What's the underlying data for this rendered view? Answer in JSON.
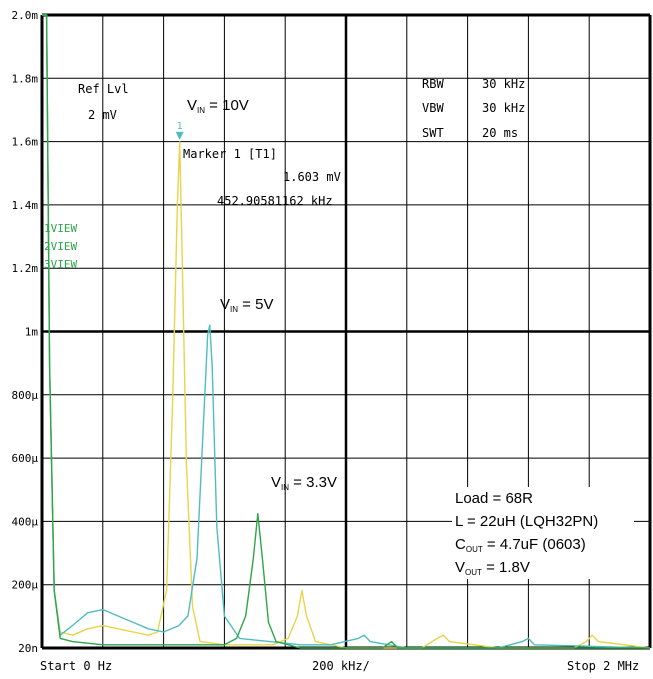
{
  "chart_data": {
    "type": "line",
    "title": "",
    "xlabel": "",
    "ylabel": "",
    "xlim": [
      0,
      2000
    ],
    "ylim": [
      2e-05,
      0.002
    ],
    "x_unit": "kHz",
    "y_unit": "V",
    "grid": true,
    "y_ticks": [
      {
        "value": 0.002,
        "label": "2.0m"
      },
      {
        "value": 0.0018,
        "label": "1.8m"
      },
      {
        "value": 0.0016,
        "label": "1.6m"
      },
      {
        "value": 0.0014,
        "label": "1.4m"
      },
      {
        "value": 0.0012,
        "label": "1.2m"
      },
      {
        "value": 0.001,
        "label": "1m"
      },
      {
        "value": 0.0008,
        "label": "800µ"
      },
      {
        "value": 0.0006,
        "label": "600µ"
      },
      {
        "value": 0.0004,
        "label": "400µ"
      },
      {
        "value": 0.0002,
        "label": "200µ"
      },
      {
        "value": 2e-05,
        "label": "20n"
      }
    ],
    "x_labels": {
      "start": "Start 0 Hz",
      "div": "200 kHz/",
      "stop": "Stop 2 MHz"
    },
    "series": [
      {
        "name": "V_IN = 10V",
        "color": "#e8d44a",
        "points": [
          [
            0,
            0.002
          ],
          [
            15,
            0.002
          ],
          [
            25,
            0.0009
          ],
          [
            40,
            0.0002
          ],
          [
            60,
            7e-05
          ],
          [
            100,
            6e-05
          ],
          [
            150,
            8e-05
          ],
          [
            200,
            9e-05
          ],
          [
            250,
            8e-05
          ],
          [
            300,
            7e-05
          ],
          [
            350,
            6e-05
          ],
          [
            380,
            7e-05
          ],
          [
            410,
            0.0002
          ],
          [
            430,
            0.0008
          ],
          [
            445,
            0.0014
          ],
          [
            452.9,
            0.001603
          ],
          [
            460,
            0.0013
          ],
          [
            475,
            0.0006
          ],
          [
            495,
            0.00015
          ],
          [
            520,
            4e-05
          ],
          [
            600,
            3e-05
          ],
          [
            680,
            3e-05
          ],
          [
            760,
            3e-05
          ],
          [
            810,
            5e-05
          ],
          [
            840,
            0.00012
          ],
          [
            855,
            0.0002
          ],
          [
            870,
            0.00012
          ],
          [
            900,
            4e-05
          ],
          [
            1000,
            2e-05
          ],
          [
            1250,
            2e-05
          ],
          [
            1300,
            5e-05
          ],
          [
            1320,
            6e-05
          ],
          [
            1340,
            4e-05
          ],
          [
            1500,
            2e-05
          ],
          [
            1750,
            2e-05
          ],
          [
            1790,
            4e-05
          ],
          [
            1810,
            6e-05
          ],
          [
            1830,
            4e-05
          ],
          [
            2000,
            2e-05
          ]
        ]
      },
      {
        "name": "V_IN = 5V",
        "color": "#4fbcc0",
        "points": [
          [
            0,
            0.002
          ],
          [
            15,
            0.002
          ],
          [
            25,
            0.0009
          ],
          [
            40,
            0.0002
          ],
          [
            60,
            6e-05
          ],
          [
            100,
            9e-05
          ],
          [
            150,
            0.00013
          ],
          [
            200,
            0.00014
          ],
          [
            250,
            0.00012
          ],
          [
            300,
            0.0001
          ],
          [
            350,
            8e-05
          ],
          [
            400,
            7e-05
          ],
          [
            450,
            9e-05
          ],
          [
            480,
            0.00012
          ],
          [
            510,
            0.0003
          ],
          [
            530,
            0.0007
          ],
          [
            545,
            0.001
          ],
          [
            552,
            0.00103
          ],
          [
            560,
            0.0009
          ],
          [
            575,
            0.0004
          ],
          [
            600,
            0.00012
          ],
          [
            650,
            5e-05
          ],
          [
            750,
            4e-05
          ],
          [
            850,
            3e-05
          ],
          [
            950,
            3e-05
          ],
          [
            1040,
            5e-05
          ],
          [
            1060,
            6e-05
          ],
          [
            1080,
            4e-05
          ],
          [
            1200,
            2e-05
          ],
          [
            1500,
            2e-05
          ],
          [
            1580,
            4e-05
          ],
          [
            1600,
            5e-05
          ],
          [
            1620,
            3e-05
          ],
          [
            2000,
            2e-05
          ]
        ]
      },
      {
        "name": "V_IN = 3.3V",
        "color": "#2ea64a",
        "points": [
          [
            0,
            0.002
          ],
          [
            15,
            0.002
          ],
          [
            25,
            0.0009
          ],
          [
            40,
            0.0002
          ],
          [
            60,
            5e-05
          ],
          [
            100,
            4e-05
          ],
          [
            200,
            3e-05
          ],
          [
            300,
            3e-05
          ],
          [
            400,
            3e-05
          ],
          [
            500,
            3e-05
          ],
          [
            600,
            3e-05
          ],
          [
            640,
            5e-05
          ],
          [
            670,
            0.00012
          ],
          [
            695,
            0.0003
          ],
          [
            710,
            0.00044
          ],
          [
            725,
            0.0003
          ],
          [
            745,
            0.0001
          ],
          [
            770,
            4e-05
          ],
          [
            850,
            2e-05
          ],
          [
            1000,
            2e-05
          ],
          [
            1120,
            2e-05
          ],
          [
            1150,
            4e-05
          ],
          [
            1170,
            2e-05
          ],
          [
            1400,
            2e-05
          ],
          [
            1700,
            2e-05
          ],
          [
            2000,
            2e-05
          ]
        ]
      }
    ],
    "marker": {
      "label": "1",
      "x": 452.9,
      "y": 0.001603
    }
  },
  "labels": {
    "ref_lvl": "Ref Lvl",
    "ref_val": "2 mV",
    "rbw_label": "RBW",
    "rbw_val": "30 kHz",
    "vbw_label": "VBW",
    "vbw_val": "30 kHz",
    "swt_label": "SWT",
    "swt_val": "20 ms",
    "marker_title": "Marker 1 [T1]",
    "marker_val": "1.603 mV",
    "marker_freq": "452.90581162 kHz",
    "view1": "1VIEW",
    "view2": "2VIEW",
    "view3": "3VIEW",
    "vin10_v": "V",
    "vin10_sub": "IN",
    "vin10_rest": " = 10V",
    "vin5_v": "V",
    "vin5_sub": "IN",
    "vin5_rest": " = 5V",
    "vin33_v": "V",
    "vin33_sub": "IN",
    "vin33_rest": " = 3.3V",
    "load": "Load = 68R",
    "inductor": "L = 22uH (LQH32PN)",
    "cout_c": "C",
    "cout_sub": "OUT",
    "cout_rest": " = 4.7uF (0603)",
    "vout_v": "V",
    "vout_sub": "OUT",
    "vout_rest": " = 1.8V"
  },
  "colors": {
    "grid": "#000000",
    "view": "#2ea64a",
    "marker": "#4fbcc0"
  }
}
